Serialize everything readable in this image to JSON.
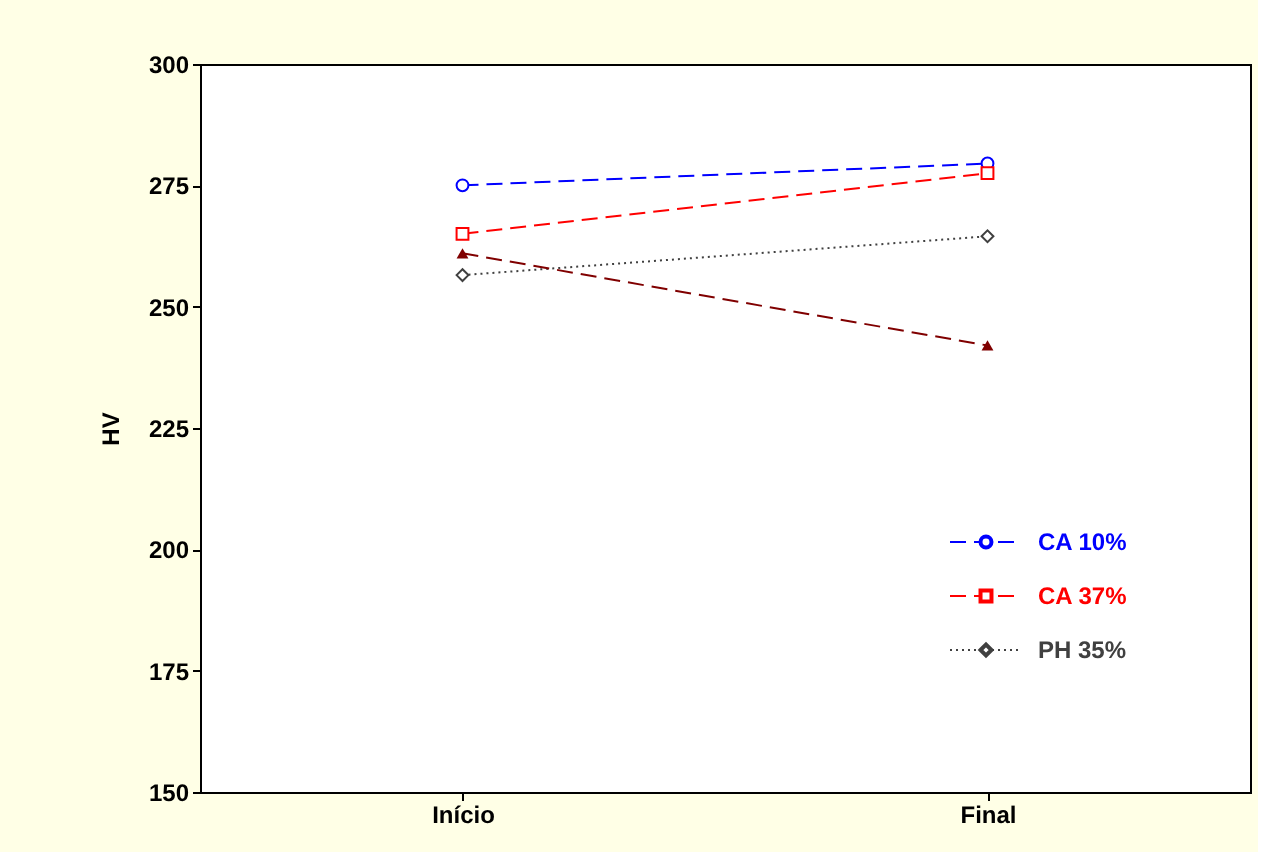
{
  "chart_data": {
    "type": "line",
    "ylabel": "HV",
    "categories": [
      "Início",
      "Final"
    ],
    "ylim": [
      150,
      300
    ],
    "yticks": [
      150,
      175,
      200,
      225,
      250,
      275,
      300
    ],
    "grid": false,
    "legend": "bottom right",
    "series": [
      {
        "name": "CA 10%",
        "color": "#0000ff",
        "values": [
          275,
          279.5
        ],
        "marker": "circle",
        "line_style": "dashed"
      },
      {
        "name": "CA 37%",
        "color": "#ff0000",
        "values": [
          265,
          277.5
        ],
        "marker": "square",
        "line_style": "dashed"
      },
      {
        "name": "PH 35%",
        "color": "#404040",
        "values": [
          256.5,
          264.5
        ],
        "marker": "diamond",
        "line_style": "dotted"
      },
      {
        "color": "#800000",
        "values": [
          261,
          242
        ],
        "marker": "triangle",
        "line_style": "dashed"
      }
    ]
  }
}
